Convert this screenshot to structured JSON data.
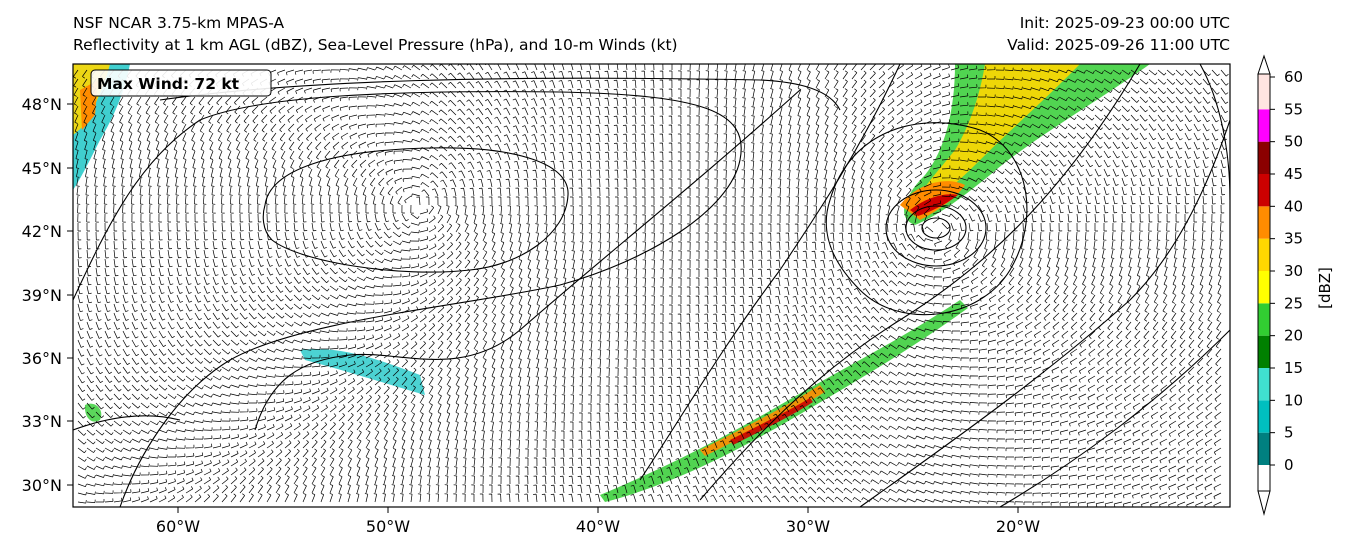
{
  "title": {
    "line1": "NSF NCAR 3.75-km MPAS-A",
    "line2": "Reflectivity at 1 km AGL (dBZ), Sea-Level Pressure (hPa), and 10-m Winds (kt)"
  },
  "times": {
    "init": "Init: 2025-09-23 00:00 UTC",
    "valid": "Valid: 2025-09-26 11:00 UTC"
  },
  "annotation": {
    "max_wind": "Max Wind: 72 kt"
  },
  "axes": {
    "lat_labels": [
      "48°N",
      "45°N",
      "42°N",
      "39°N",
      "36°N",
      "33°N",
      "30°N"
    ],
    "lon_labels": [
      "60°W",
      "50°W",
      "40°W",
      "30°W",
      "20°W"
    ]
  },
  "colorbar": {
    "label": "[dBZ]",
    "ticks": [
      "0",
      "5",
      "10",
      "15",
      "20",
      "25",
      "30",
      "35",
      "40",
      "45",
      "50",
      "55",
      "60"
    ],
    "colors": [
      "#008080",
      "#00bfbf",
      "#40e0d0",
      "#008000",
      "#32cd32",
      "#ffff00",
      "#ffd700",
      "#ff8c00",
      "#cc0000",
      "#8b0000",
      "#ff00ff",
      "#ffe4e1"
    ]
  },
  "colors": {
    "map_background": "#ffffff",
    "barb": "#000000",
    "isobar": "#000000"
  }
}
